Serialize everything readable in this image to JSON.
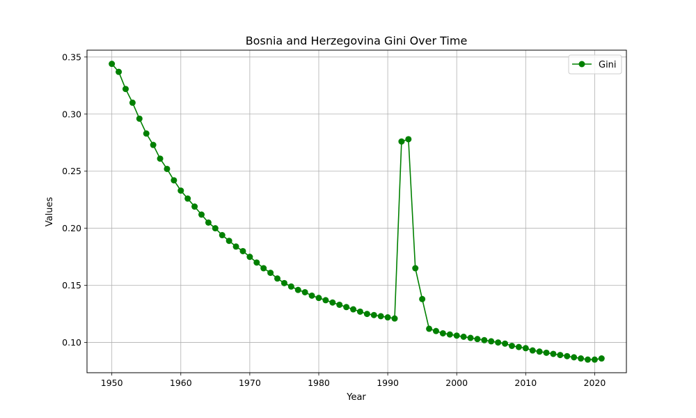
{
  "chart_data": {
    "type": "line",
    "title": "Bosnia and Herzegovina Gini Over Time",
    "xlabel": "Year",
    "ylabel": "Values",
    "xlim": [
      1946.4,
      2024.6
    ],
    "ylim": [
      0.0735,
      0.356
    ],
    "xticks": [
      1950,
      1960,
      1970,
      1980,
      1990,
      2000,
      2010,
      2020
    ],
    "yticks": [
      0.1,
      0.15,
      0.2,
      0.25,
      0.3,
      0.35
    ],
    "ytick_labels": [
      "0.10",
      "0.15",
      "0.20",
      "0.25",
      "0.30",
      "0.35"
    ],
    "grid": true,
    "legend_position": "upper right",
    "series": [
      {
        "name": "Gini",
        "color": "#008000",
        "marker": "circle",
        "x": [
          1950,
          1951,
          1952,
          1953,
          1954,
          1955,
          1956,
          1957,
          1958,
          1959,
          1960,
          1961,
          1962,
          1963,
          1964,
          1965,
          1966,
          1967,
          1968,
          1969,
          1970,
          1971,
          1972,
          1973,
          1974,
          1975,
          1976,
          1977,
          1978,
          1979,
          1980,
          1981,
          1982,
          1983,
          1984,
          1985,
          1986,
          1987,
          1988,
          1989,
          1990,
          1991,
          1992,
          1993,
          1994,
          1995,
          1996,
          1997,
          1998,
          1999,
          2000,
          2001,
          2002,
          2003,
          2004,
          2005,
          2006,
          2007,
          2008,
          2009,
          2010,
          2011,
          2012,
          2013,
          2014,
          2015,
          2016,
          2017,
          2018,
          2019,
          2020,
          2021
        ],
        "y": [
          0.344,
          0.337,
          0.322,
          0.31,
          0.296,
          0.283,
          0.273,
          0.261,
          0.252,
          0.242,
          0.233,
          0.226,
          0.219,
          0.212,
          0.205,
          0.2,
          0.194,
          0.189,
          0.184,
          0.18,
          0.175,
          0.17,
          0.165,
          0.161,
          0.156,
          0.152,
          0.149,
          0.146,
          0.144,
          0.141,
          0.139,
          0.137,
          0.135,
          0.133,
          0.131,
          0.129,
          0.127,
          0.125,
          0.124,
          0.123,
          0.122,
          0.121,
          0.276,
          0.278,
          0.165,
          0.138,
          0.112,
          0.11,
          0.108,
          0.107,
          0.106,
          0.105,
          0.104,
          0.103,
          0.102,
          0.101,
          0.1,
          0.099,
          0.097,
          0.096,
          0.095,
          0.093,
          0.092,
          0.091,
          0.09,
          0.089,
          0.088,
          0.087,
          0.086,
          0.085,
          0.085,
          0.086
        ]
      }
    ]
  }
}
